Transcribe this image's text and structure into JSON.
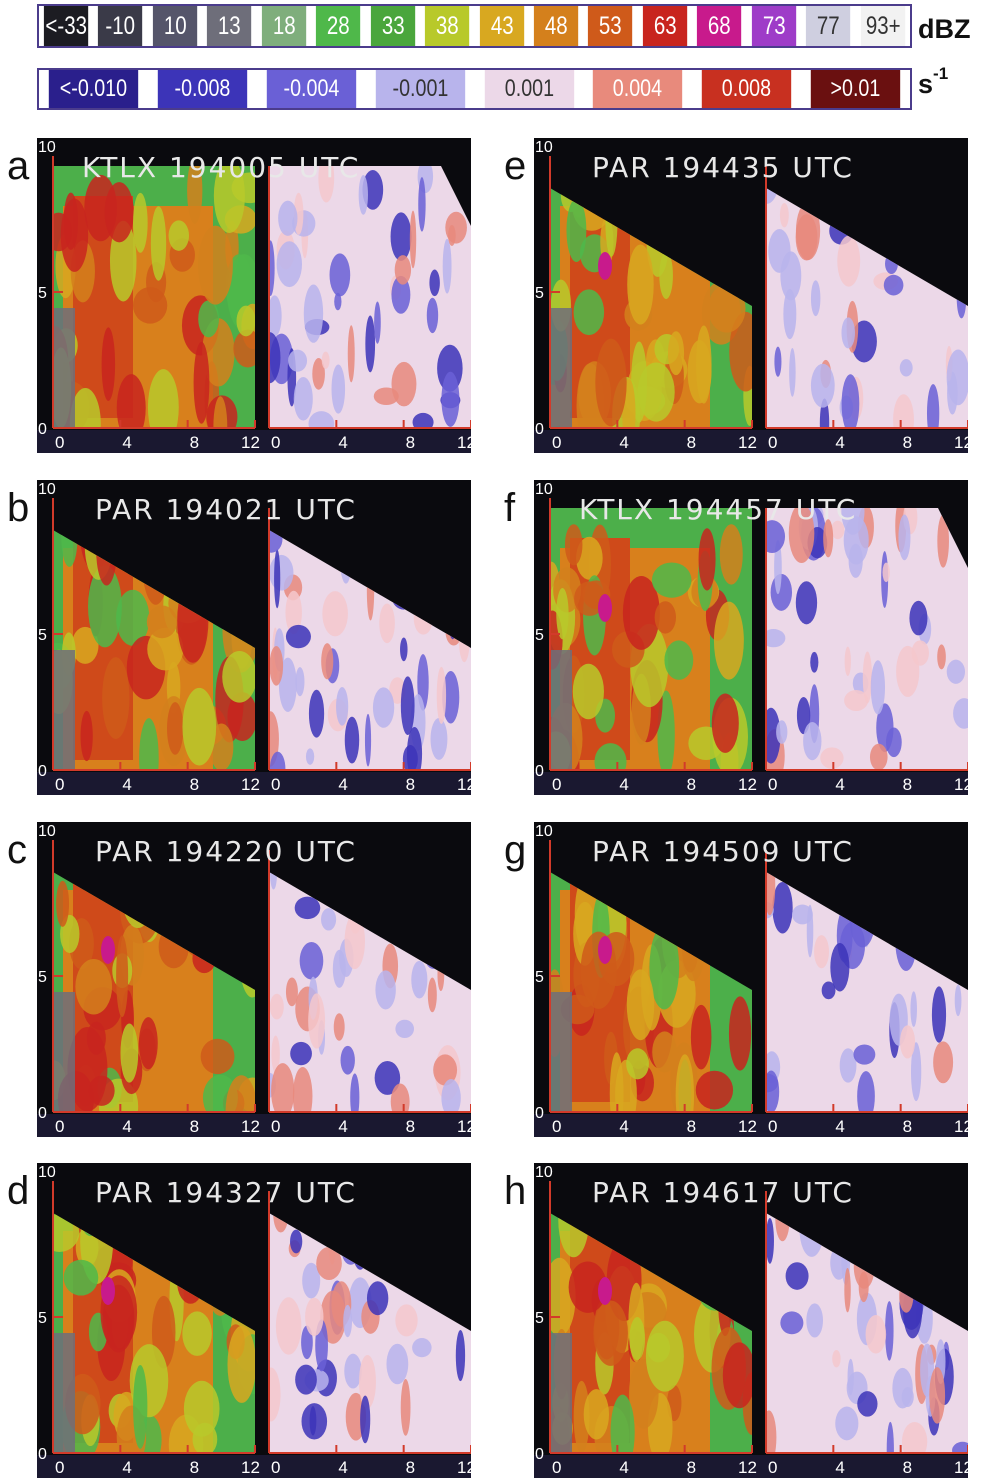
{
  "reflectivity_scale": {
    "unit": "dBZ",
    "labels": [
      "<-33",
      "-10",
      "10",
      "13",
      "18",
      "28",
      "33",
      "38",
      "43",
      "48",
      "53",
      "63",
      "68",
      "73",
      "77",
      "93+"
    ],
    "colors": [
      "#1c1c22",
      "#3a3a48",
      "#55556a",
      "#6e6e7a",
      "#7fae7c",
      "#4fb84a",
      "#4aa63c",
      "#b8c92a",
      "#d8a820",
      "#d4801c",
      "#cf5a1a",
      "#c8241e",
      "#c81a8c",
      "#9e3cc8",
      "#cfcfe0",
      "#f2f2f2"
    ]
  },
  "velocity_scale": {
    "unit": "s",
    "exponent": "-1",
    "labels": [
      "<-0.010",
      "-0.008",
      "-0.004",
      "-0.001",
      "0.001",
      "0.004",
      "0.008",
      ">0.01"
    ],
    "colors": [
      "#2a1f8c",
      "#3c34b8",
      "#6a60d6",
      "#b8b4ec",
      "#ecd8e8",
      "#e88a7c",
      "#c83020",
      "#6a1010"
    ]
  },
  "panels": [
    {
      "letter": "a",
      "title": "KTLX 194005 UTC",
      "radar": "KTLX"
    },
    {
      "letter": "b",
      "title": "PAR 194021 UTC",
      "radar": "PAR"
    },
    {
      "letter": "c",
      "title": "PAR 194220 UTC",
      "radar": "PAR"
    },
    {
      "letter": "d",
      "title": "PAR 194327 UTC",
      "radar": "PAR"
    },
    {
      "letter": "e",
      "title": "PAR 194435 UTC",
      "radar": "PAR"
    },
    {
      "letter": "f",
      "title": "KTLX 194457 UTC",
      "radar": "KTLX"
    },
    {
      "letter": "g",
      "title": "PAR 194509 UTC",
      "radar": "PAR"
    },
    {
      "letter": "h",
      "title": "PAR 194617 UTC",
      "radar": "PAR"
    }
  ],
  "axes": {
    "y_ticks": [
      "10",
      "5",
      "0"
    ],
    "x_ticks": [
      "0",
      "4",
      "8",
      "12"
    ]
  }
}
